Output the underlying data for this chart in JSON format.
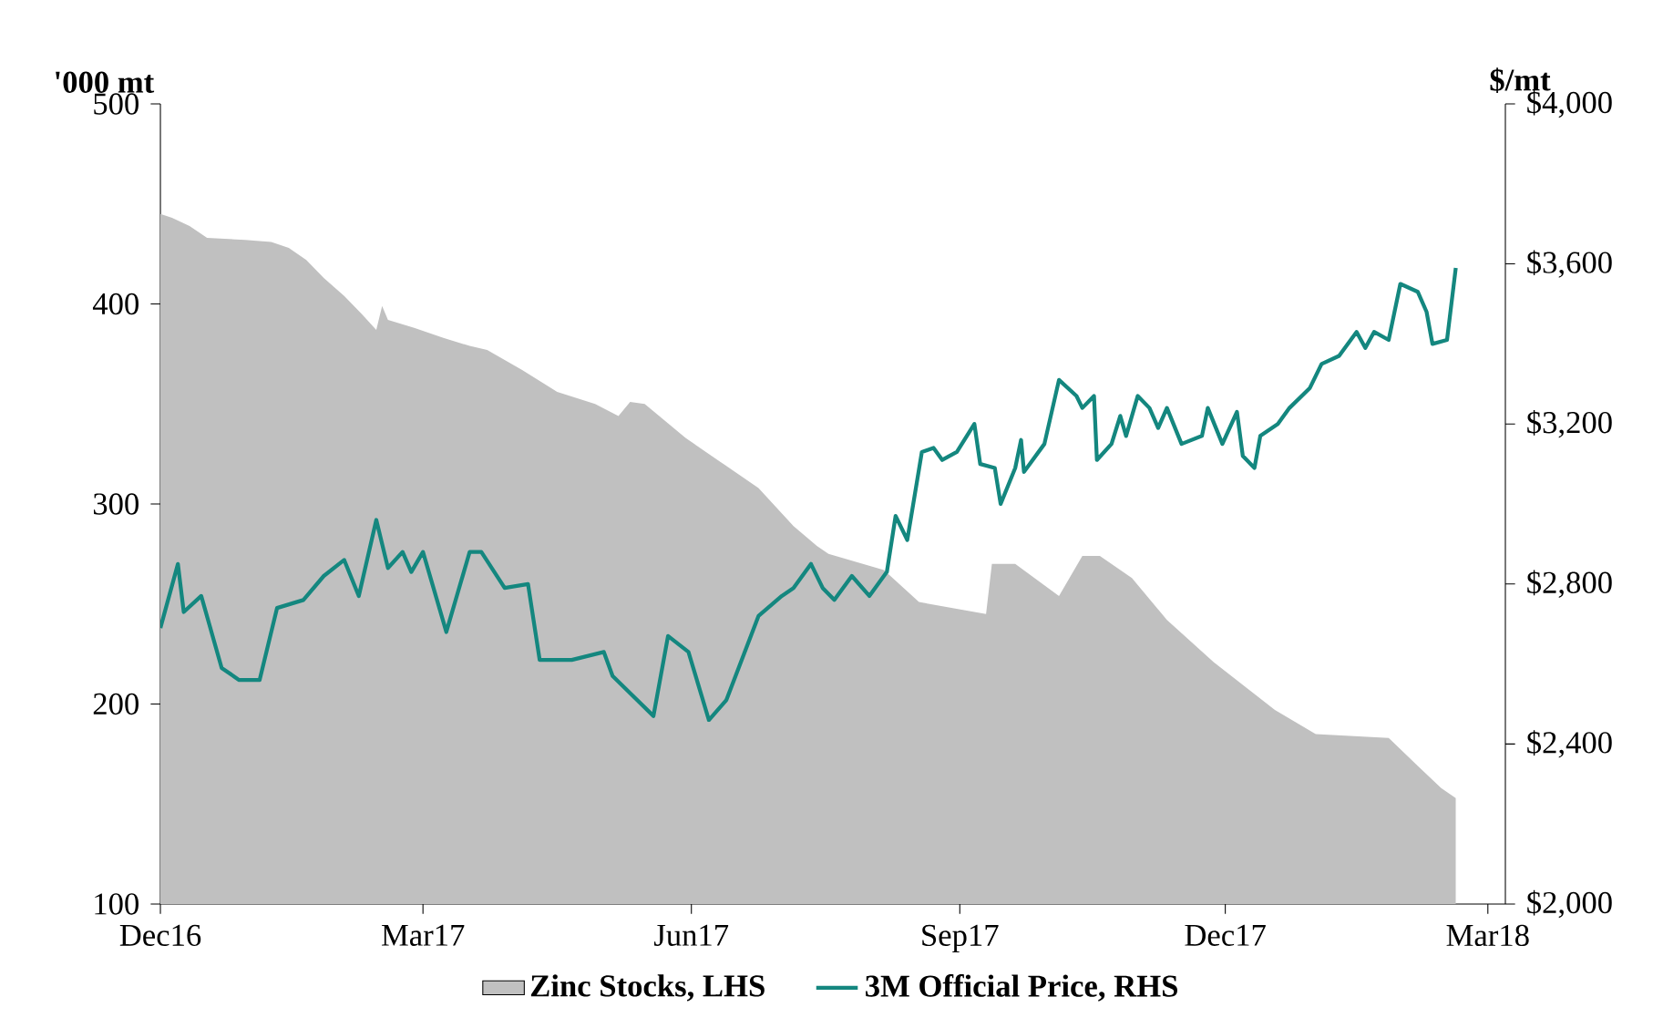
{
  "chart_data": {
    "type": "area",
    "ylabel": "'000 mt",
    "y2label": "$/mt",
    "xlim": [
      "2016-12-01",
      "2018-03-07"
    ],
    "xticks": [
      {
        "value": "2016-12-01",
        "label": "Dec16"
      },
      {
        "value": "2017-03-01",
        "label": "Mar17"
      },
      {
        "value": "2017-06-01",
        "label": "Jun17"
      },
      {
        "value": "2017-09-01",
        "label": "Sep17"
      },
      {
        "value": "2017-12-01",
        "label": "Dec17"
      },
      {
        "value": "2018-03-01",
        "label": "Mar18"
      }
    ],
    "ylim": [
      100,
      500
    ],
    "yticks": [
      100,
      200,
      300,
      400,
      500
    ],
    "y2lim": [
      2000,
      4000
    ],
    "y2ticks": [
      {
        "value": 2000,
        "label": "$2,000"
      },
      {
        "value": 2400,
        "label": "$2,400"
      },
      {
        "value": 2800,
        "label": "$2,800"
      },
      {
        "value": 3200,
        "label": "$3,200"
      },
      {
        "value": 3600,
        "label": "$3,600"
      },
      {
        "value": 4000,
        "label": "$4,000"
      }
    ],
    "legend": "bottom",
    "series": [
      {
        "name": "Zinc Stocks, LHS",
        "color": "#c0c0c0",
        "x": [
          "2016-12-01",
          "2016-12-05",
          "2016-12-11",
          "2016-12-17",
          "2016-12-30",
          "2017-01-08",
          "2017-01-14",
          "2017-01-20",
          "2017-01-26",
          "2017-02-02",
          "2017-02-08",
          "2017-02-13",
          "2017-02-15",
          "2017-02-17",
          "2017-02-26",
          "2017-03-08",
          "2017-03-17",
          "2017-03-23",
          "2017-04-04",
          "2017-04-16",
          "2017-04-29",
          "2017-05-07",
          "2017-05-11",
          "2017-05-16",
          "2017-05-30",
          "2017-06-11",
          "2017-06-24",
          "2017-07-06",
          "2017-07-14",
          "2017-07-18",
          "2017-08-06",
          "2017-08-18",
          "2017-09-10",
          "2017-09-12",
          "2017-09-20",
          "2017-10-05",
          "2017-10-13",
          "2017-10-19",
          "2017-10-30",
          "2017-11-11",
          "2017-11-27",
          "2017-12-18",
          "2018-01-01",
          "2018-01-26",
          "2018-02-05",
          "2018-02-13",
          "2018-02-18"
        ],
        "values": [
          445,
          443,
          439,
          433,
          432,
          431,
          428,
          422,
          413,
          404,
          395,
          387,
          399,
          392,
          388,
          383,
          379,
          377,
          367,
          356,
          350,
          344,
          351,
          350,
          333,
          321,
          308,
          289,
          279,
          275,
          267,
          251,
          245,
          270,
          270,
          254,
          274,
          274,
          263,
          242,
          221,
          197,
          185,
          183,
          169,
          158,
          153
        ]
      },
      {
        "name": "3M Official Price, RHS",
        "type": "line",
        "axis": "y2",
        "color": "#14877f",
        "x": [
          "2016-12-01",
          "2016-12-07",
          "2016-12-09",
          "2016-12-15",
          "2016-12-22",
          "2016-12-28",
          "2017-01-04",
          "2017-01-10",
          "2017-01-19",
          "2017-01-26",
          "2017-02-02",
          "2017-02-07",
          "2017-02-13",
          "2017-02-17",
          "2017-02-22",
          "2017-02-25",
          "2017-03-01",
          "2017-03-09",
          "2017-03-17",
          "2017-03-21",
          "2017-03-29",
          "2017-04-06",
          "2017-04-10",
          "2017-04-21",
          "2017-05-02",
          "2017-05-05",
          "2017-05-19",
          "2017-05-24",
          "2017-05-31",
          "2017-06-07",
          "2017-06-13",
          "2017-06-24",
          "2017-07-02",
          "2017-07-06",
          "2017-07-12",
          "2017-07-16",
          "2017-07-20",
          "2017-07-26",
          "2017-08-01",
          "2017-08-07",
          "2017-08-10",
          "2017-08-14",
          "2017-08-19",
          "2017-08-23",
          "2017-08-26",
          "2017-08-31",
          "2017-09-06",
          "2017-09-08",
          "2017-09-13",
          "2017-09-15",
          "2017-09-20",
          "2017-09-22",
          "2017-09-23",
          "2017-09-30",
          "2017-10-05",
          "2017-10-11",
          "2017-10-13",
          "2017-10-17",
          "2017-10-18",
          "2017-10-23",
          "2017-10-26",
          "2017-10-28",
          "2017-11-01",
          "2017-11-05",
          "2017-11-08",
          "2017-11-11",
          "2017-11-16",
          "2017-11-23",
          "2017-11-25",
          "2017-11-30",
          "2017-12-05",
          "2017-12-07",
          "2017-12-11",
          "2017-12-13",
          "2017-12-19",
          "2017-12-23",
          "2017-12-30",
          "2018-01-03",
          "2018-01-09",
          "2018-01-15",
          "2018-01-18",
          "2018-01-21",
          "2018-01-26",
          "2018-01-30",
          "2018-02-05",
          "2018-02-08",
          "2018-02-10",
          "2018-02-15",
          "2018-02-18"
        ],
        "values": [
          2690,
          2850,
          2730,
          2770,
          2590,
          2560,
          2560,
          2740,
          2760,
          2820,
          2860,
          2770,
          2960,
          2840,
          2880,
          2830,
          2880,
          2680,
          2880,
          2880,
          2790,
          2800,
          2610,
          2610,
          2630,
          2570,
          2470,
          2670,
          2630,
          2460,
          2510,
          2720,
          2770,
          2790,
          2850,
          2790,
          2760,
          2820,
          2770,
          2830,
          2970,
          2910,
          3130,
          3140,
          3110,
          3130,
          3200,
          3100,
          3090,
          3000,
          3090,
          3160,
          3080,
          3150,
          3310,
          3270,
          3240,
          3270,
          3110,
          3150,
          3220,
          3170,
          3270,
          3240,
          3190,
          3240,
          3150,
          3170,
          3240,
          3150,
          3230,
          3120,
          3090,
          3170,
          3200,
          3240,
          3290,
          3350,
          3370,
          3430,
          3390,
          3430,
          3410,
          3550,
          3530,
          3480,
          3400,
          3410,
          3590
        ]
      }
    ]
  }
}
